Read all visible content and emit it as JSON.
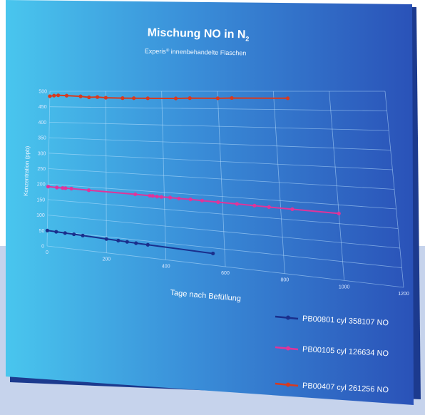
{
  "chart_data": {
    "type": "line",
    "title_main": "Mischung NO in N",
    "title_sub": "2",
    "subtitle_pre": "Experis",
    "subtitle_reg": "®",
    "subtitle_post": " innenbehandelte Flaschen",
    "xlabel": "Tage nach Befüllung",
    "ylabel": "Konzentration (ppb)",
    "xlim": [
      0,
      1200
    ],
    "ylim": [
      0,
      500
    ],
    "xticks": [
      0,
      200,
      400,
      600,
      800,
      1000,
      1200
    ],
    "yticks": [
      0,
      50,
      100,
      150,
      200,
      250,
      300,
      350,
      400,
      450,
      500
    ],
    "grid": true,
    "legend_position": "bottom-right, below plot",
    "series": [
      {
        "name": "PB00801 cyl 358107 NO",
        "color": "#1a2f8c",
        "points": [
          [
            0,
            50
          ],
          [
            30,
            49
          ],
          [
            60,
            48
          ],
          [
            90,
            47
          ],
          [
            120,
            46
          ],
          [
            200,
            43
          ],
          [
            240,
            42
          ],
          [
            270,
            41
          ],
          [
            300,
            40
          ],
          [
            340,
            39
          ],
          [
            560,
            34
          ]
        ]
      },
      {
        "name": "PB00105 cyl 126634 NO",
        "color": "#e0349a",
        "points": [
          [
            0,
            192
          ],
          [
            30,
            191
          ],
          [
            50,
            191
          ],
          [
            60,
            191
          ],
          [
            80,
            191
          ],
          [
            140,
            190
          ],
          [
            300,
            188
          ],
          [
            350,
            187
          ],
          [
            360,
            187
          ],
          [
            375,
            186
          ],
          [
            390,
            186
          ],
          [
            420,
            186
          ],
          [
            450,
            185
          ],
          [
            490,
            185
          ],
          [
            530,
            184
          ],
          [
            585,
            183
          ],
          [
            650,
            182
          ],
          [
            710,
            181
          ],
          [
            760,
            180
          ],
          [
            840,
            179
          ],
          [
            1000,
            177
          ]
        ]
      },
      {
        "name": "PB00407 cyl 261256 NO",
        "color": "#d83a1e",
        "points": [
          [
            0,
            484
          ],
          [
            15,
            486
          ],
          [
            30,
            487
          ],
          [
            60,
            486
          ],
          [
            110,
            484
          ],
          [
            140,
            481
          ],
          [
            170,
            482
          ],
          [
            200,
            480
          ],
          [
            260,
            479
          ],
          [
            300,
            479
          ],
          [
            350,
            479
          ],
          [
            450,
            479
          ],
          [
            500,
            480
          ],
          [
            600,
            480
          ],
          [
            650,
            481
          ],
          [
            850,
            481
          ]
        ]
      }
    ]
  }
}
